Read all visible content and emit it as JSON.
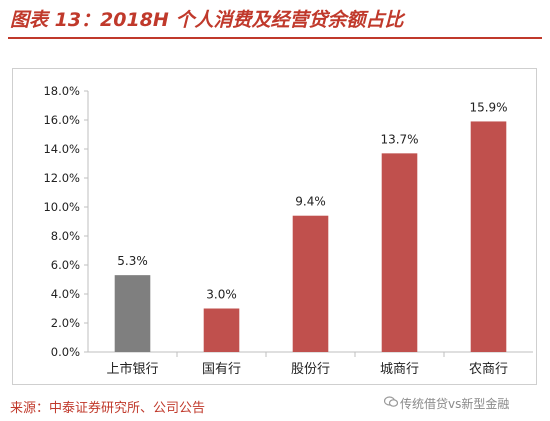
{
  "header": {
    "title": "图表 13：2018H 个人消费及经营贷余额占比"
  },
  "footer": {
    "source": "来源：中泰证券研究所、公司公告",
    "watermark": "传统借贷vs新型金融",
    "watermark_icon": "wechat-bubble-icon"
  },
  "colors": {
    "accent": "#c0392b",
    "bar_red": "#c0504d",
    "bar_gray": "#7f7f7f",
    "axis": "#bfbfbf"
  },
  "chart_data": {
    "type": "bar",
    "title": "",
    "xlabel": "",
    "ylabel": "",
    "categories": [
      "上市银行",
      "国有行",
      "股份行",
      "城商行",
      "农商行"
    ],
    "values": [
      5.3,
      3.0,
      9.4,
      13.7,
      15.9
    ],
    "data_labels": [
      "5.3%",
      "3.0%",
      "9.4%",
      "13.7%",
      "15.9%"
    ],
    "bar_colors": [
      "#7f7f7f",
      "#c0504d",
      "#c0504d",
      "#c0504d",
      "#c0504d"
    ],
    "ylim": [
      0,
      18
    ],
    "yticks": [
      0,
      2,
      4,
      6,
      8,
      10,
      12,
      14,
      16,
      18
    ],
    "ytick_labels": [
      "0.0%",
      "2.0%",
      "4.0%",
      "6.0%",
      "8.0%",
      "10.0%",
      "12.0%",
      "14.0%",
      "16.0%",
      "18.0%"
    ],
    "grid": false,
    "legend": "none"
  }
}
